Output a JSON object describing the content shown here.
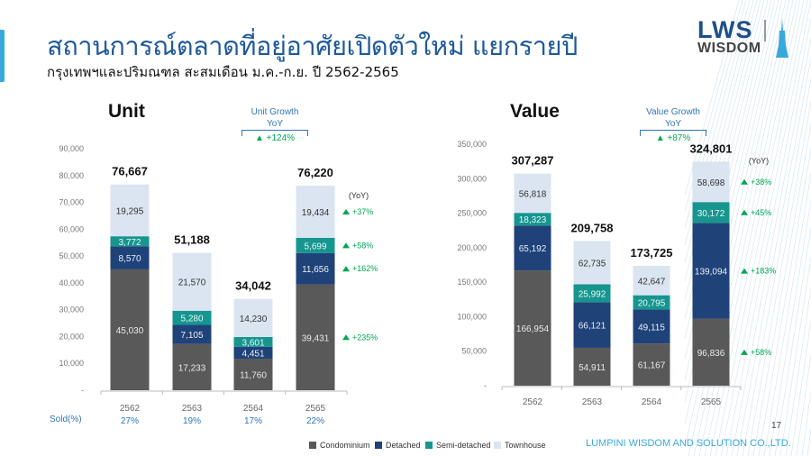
{
  "header": {
    "title": "สถานการณ์ตลาดที่อยู่อาศัยเปิดตัวใหม่ แยกรายปี",
    "subtitle": "กรุงเทพฯและปริมณฑล สะสมเดือน ม.ค.-ก.ย. ปี 2562-2565",
    "logo_line1": "LWS",
    "logo_line2": "WISDOM"
  },
  "colors": {
    "condominium": "#595959",
    "detached": "#1f4279",
    "semi_detached": "#17958f",
    "townhouse": "#dbe5f1",
    "growth": "#00a651",
    "accent": "#2e75b6"
  },
  "chart_data": [
    {
      "type": "bar",
      "stacked": true,
      "title": "Unit",
      "categories": [
        "2562",
        "2563",
        "2564",
        "2565"
      ],
      "ylim": [
        0,
        90000
      ],
      "yticks": [
        "-",
        "10,000",
        "20,000",
        "30,000",
        "40,000",
        "50,000",
        "60,000",
        "70,000",
        "80,000",
        "90,000"
      ],
      "series": [
        {
          "name": "Condominium",
          "values": [
            45030,
            17233,
            11760,
            39431
          ],
          "labels": [
            "45,030",
            "17,233",
            "11,760",
            "39,431"
          ]
        },
        {
          "name": "Detached",
          "values": [
            8570,
            7105,
            4451,
            11656
          ],
          "labels": [
            "8,570",
            "7,105",
            "4,451",
            "11,656"
          ]
        },
        {
          "name": "Semi-detached",
          "values": [
            3772,
            5280,
            3601,
            5699
          ],
          "labels": [
            "3,772",
            "5,280",
            "3,601",
            "5,699"
          ]
        },
        {
          "name": "Townhouse",
          "values": [
            19295,
            21570,
            14230,
            19434
          ],
          "labels": [
            "19,295",
            "21,570",
            "14,230",
            "19,434"
          ]
        }
      ],
      "totals": [
        "76,667",
        "51,188",
        "34,042",
        "76,220"
      ],
      "growth_title_line1": "Unit Growth",
      "growth_title_line2": "YoY",
      "growth_total": "+124%",
      "yoy_label": "(YoY)",
      "yoy": [
        "+235%",
        "+162%",
        "+58%",
        "+37%"
      ],
      "sold_label": "Sold(%)",
      "sold": [
        "27%",
        "19%",
        "17%",
        "22%"
      ]
    },
    {
      "type": "bar",
      "stacked": true,
      "title": "Value",
      "categories": [
        "2562",
        "2563",
        "2564",
        "2565"
      ],
      "ylim": [
        0,
        350000
      ],
      "yticks": [
        "-",
        "50,000",
        "100,000",
        "150,000",
        "200,000",
        "250,000",
        "300,000",
        "350,000"
      ],
      "series": [
        {
          "name": "Condominium",
          "values": [
            166954,
            54911,
            61167,
            96836
          ],
          "labels": [
            "166,954",
            "54,911",
            "61,167",
            "96,836"
          ]
        },
        {
          "name": "Detached",
          "values": [
            65192,
            66121,
            49115,
            139094
          ],
          "labels": [
            "65,192",
            "66,121",
            "49,115",
            "139,094"
          ]
        },
        {
          "name": "Semi-detached",
          "values": [
            18323,
            25992,
            20795,
            30172
          ],
          "labels": [
            "18,323",
            "25,992",
            "20,795",
            "30,172"
          ]
        },
        {
          "name": "Townhouse",
          "values": [
            56818,
            62735,
            42647,
            58698
          ],
          "labels": [
            "56,818",
            "62,735",
            "42,647",
            "58,698"
          ]
        }
      ],
      "totals": [
        "307,287",
        "209,758",
        "173,725",
        "324,801"
      ],
      "growth_title_line1": "Value Growth",
      "growth_title_line2": "YoY",
      "growth_total": "+87%",
      "yoy_label": "(YoY)",
      "yoy": [
        "+58%",
        "+183%",
        "+45%",
        "+38%"
      ]
    }
  ],
  "legend": [
    "Condominium",
    "Detached",
    "Semi-detached",
    "Townhouse"
  ],
  "footer": {
    "company": "LUMPINI WISDOM AND SOLUTION CO.,LTD.",
    "page": "17"
  }
}
